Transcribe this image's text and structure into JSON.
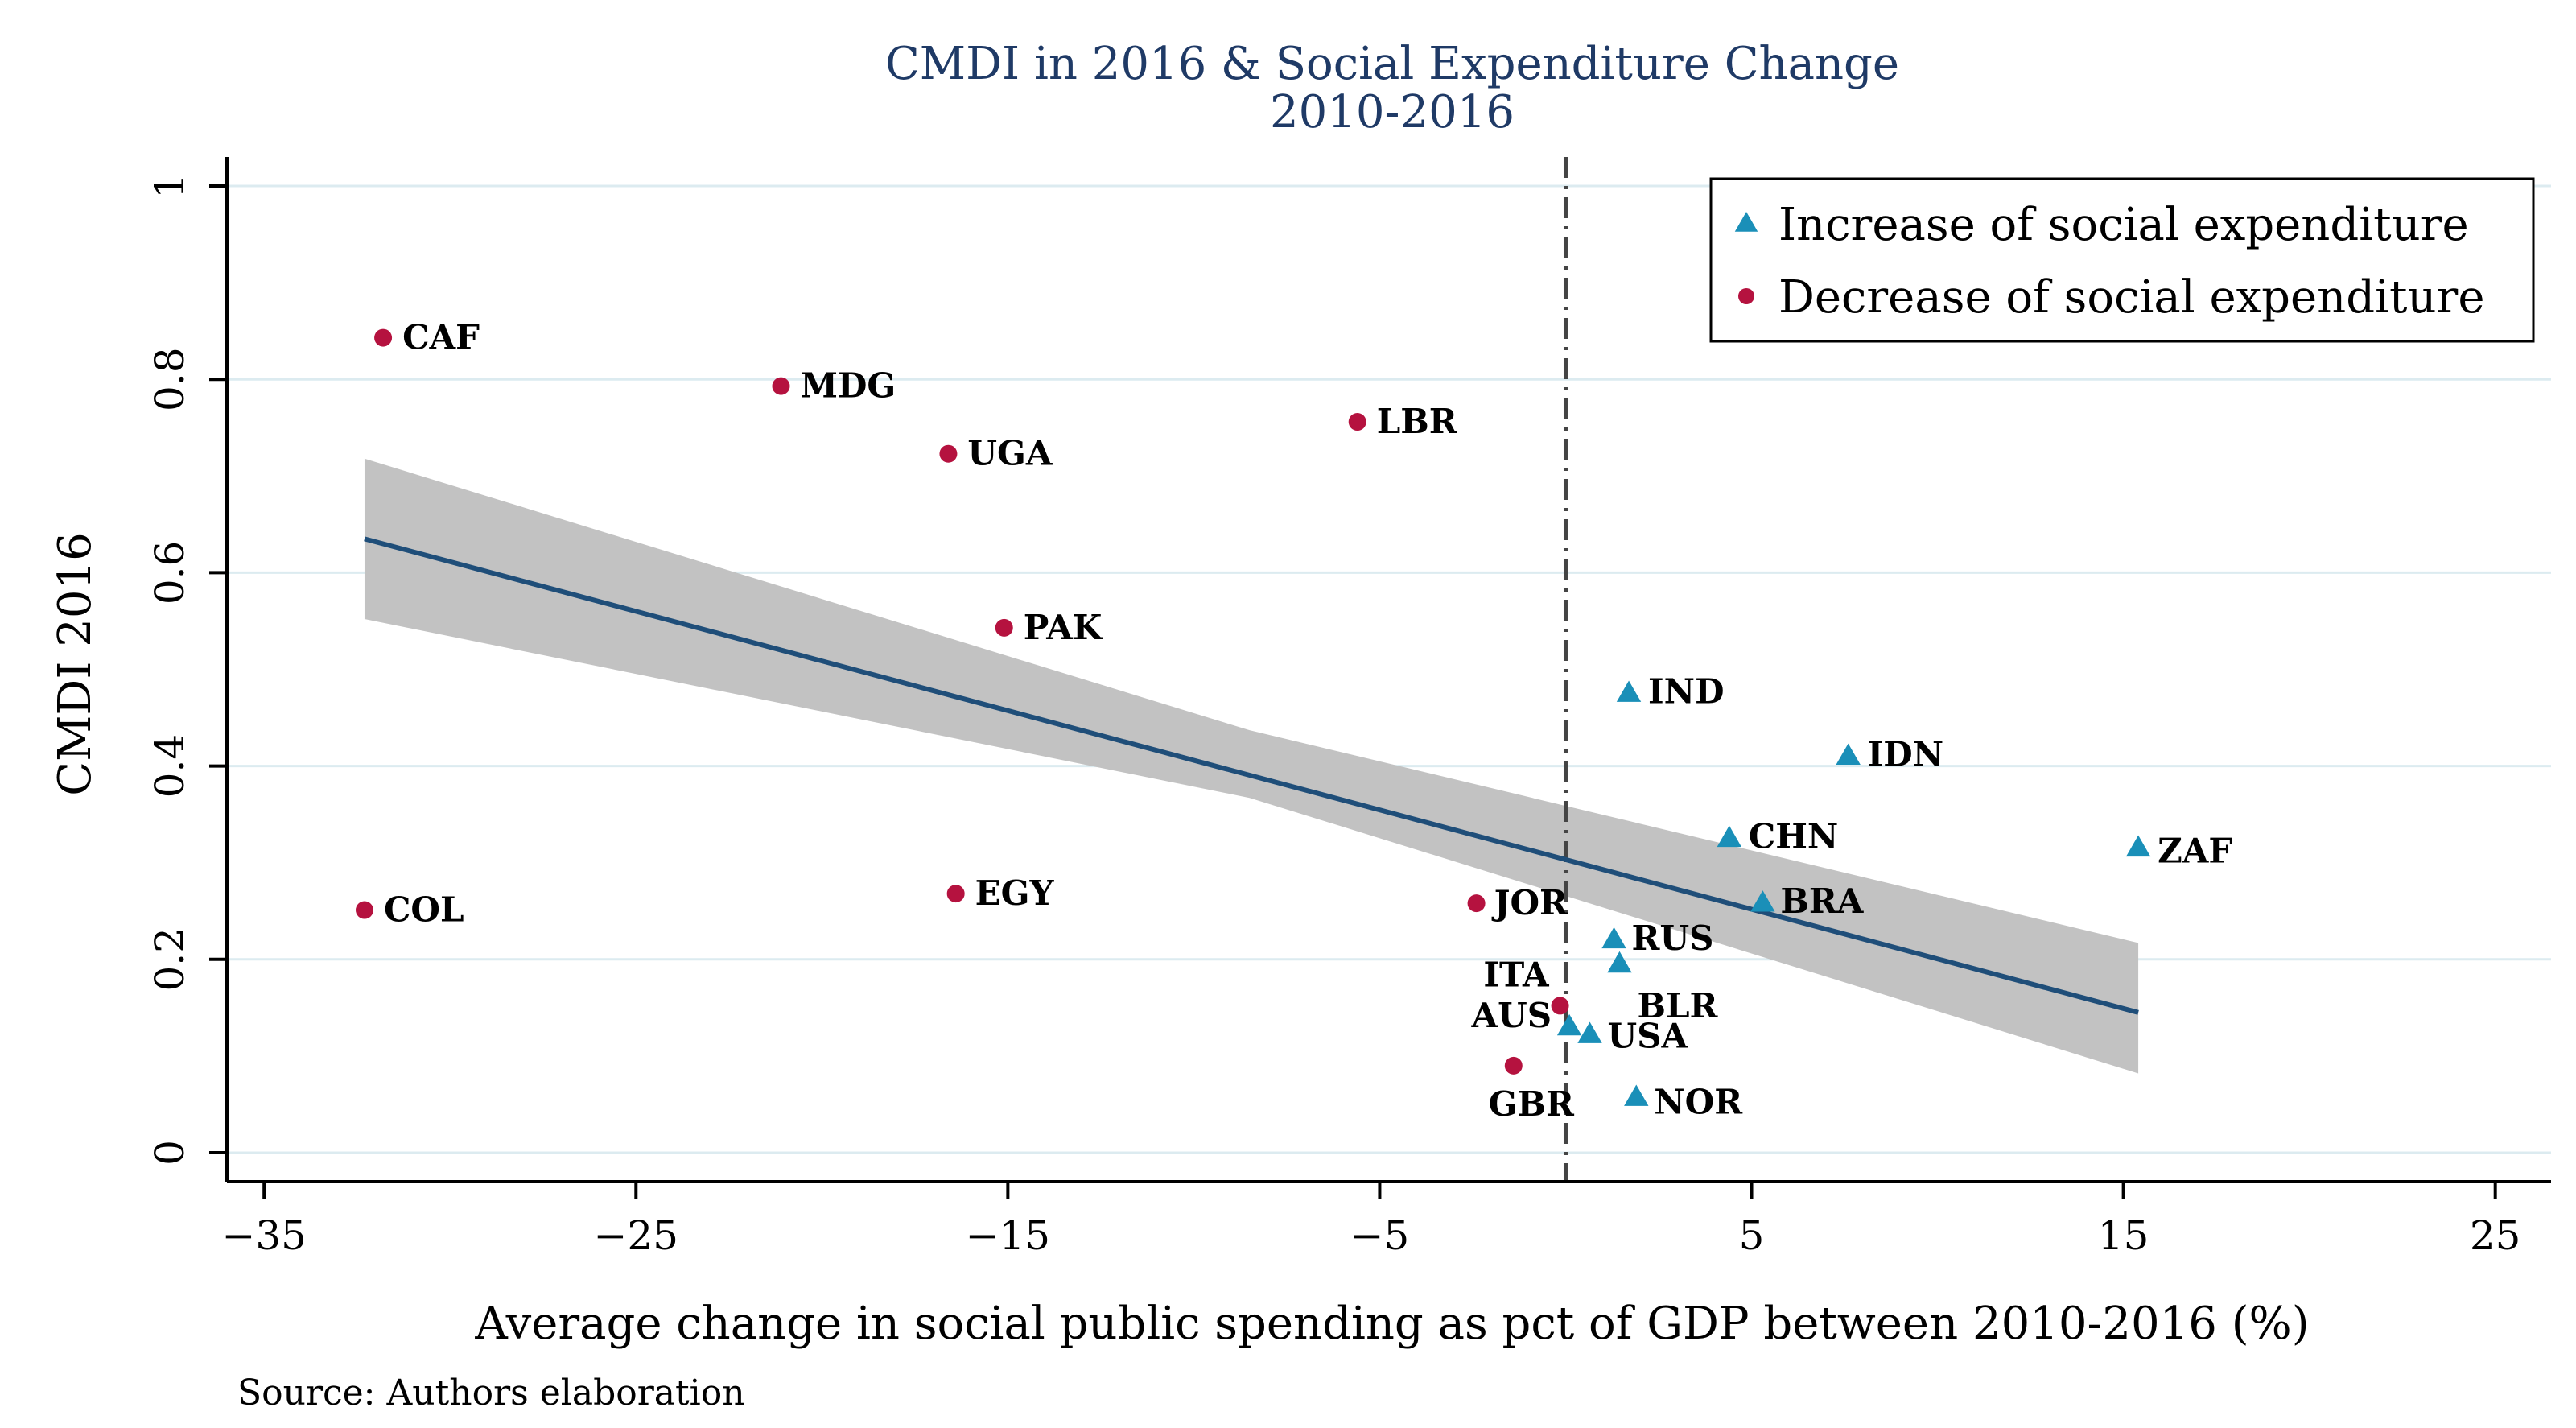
{
  "colors": {
    "increase": "#1a8fb8",
    "decrease": "#b5123f",
    "fit_line": "#1f4e79",
    "ci_band": "#c2c2c2",
    "gridline": "#dcebf0",
    "title": "#1f3a66"
  },
  "chart_data": {
    "type": "scatter",
    "title": "CMDI in 2016 & Social Expenditure Change",
    "subtitle": "2010-2016",
    "xlabel": "Average change in social public spending as pct of GDP between 2010-2016 (%)",
    "ylabel": "CMDI 2016",
    "source": "Source: Authors elaboration",
    "xlim": [
      -36,
      26.5
    ],
    "ylim": [
      -0.03,
      1.03
    ],
    "xticks": [
      -35,
      -25,
      -15,
      -5,
      5,
      15,
      25
    ],
    "xtick_labels": [
      "−35",
      "−25",
      "−15",
      "−5",
      "5",
      "15",
      "25"
    ],
    "yticks": [
      0,
      0.2,
      0.4,
      0.6,
      0.8,
      1
    ],
    "ytick_labels": [
      "0",
      "0.2",
      "0.4",
      "0.6",
      "0.8",
      "1"
    ],
    "grid": true,
    "reference_line_x": 0,
    "legend_position": "top-right",
    "series": [
      {
        "name": "Increase of social expenditure",
        "marker": "triangle",
        "points": [
          {
            "label": "IND",
            "x": 1.7,
            "y": 0.475
          },
          {
            "label": "IDN",
            "x": 7.6,
            "y": 0.41
          },
          {
            "label": "CHN",
            "x": 4.4,
            "y": 0.325
          },
          {
            "label": "ZAF",
            "x": 15.4,
            "y": 0.315
          },
          {
            "label": "BRA",
            "x": 5.3,
            "y": 0.258
          },
          {
            "label": "RUS",
            "x": 1.3,
            "y": 0.22
          },
          {
            "label": "BLR",
            "x": 1.45,
            "y": 0.195
          },
          {
            "label": "AUS",
            "x": 0.1,
            "y": 0.13
          },
          {
            "label": "USA",
            "x": 0.65,
            "y": 0.122
          },
          {
            "label": "NOR",
            "x": 1.9,
            "y": 0.057
          }
        ]
      },
      {
        "name": "Decrease of social expenditure",
        "marker": "circle",
        "points": [
          {
            "label": "CAF",
            "x": -31.8,
            "y": 0.843
          },
          {
            "label": "MDG",
            "x": -21.1,
            "y": 0.793
          },
          {
            "label": "LBR",
            "x": -5.6,
            "y": 0.756
          },
          {
            "label": "UGA",
            "x": -16.6,
            "y": 0.723
          },
          {
            "label": "PAK",
            "x": -15.1,
            "y": 0.543
          },
          {
            "label": "COL",
            "x": -32.3,
            "y": 0.251
          },
          {
            "label": "EGY",
            "x": -16.4,
            "y": 0.268
          },
          {
            "label": "JOR",
            "x": -2.4,
            "y": 0.258
          },
          {
            "label": "ITA",
            "x": -0.15,
            "y": 0.152
          },
          {
            "label": "GBR",
            "x": -1.4,
            "y": 0.09
          }
        ]
      }
    ],
    "fit": {
      "x": [
        -32.3,
        15.4
      ],
      "y": [
        0.635,
        0.145
      ],
      "ci_at_x": [
        -32.3,
        -8.5,
        15.4
      ],
      "ci_lower": [
        0.552,
        0.367,
        0.082
      ],
      "ci_upper": [
        0.718,
        0.437,
        0.217
      ]
    }
  }
}
